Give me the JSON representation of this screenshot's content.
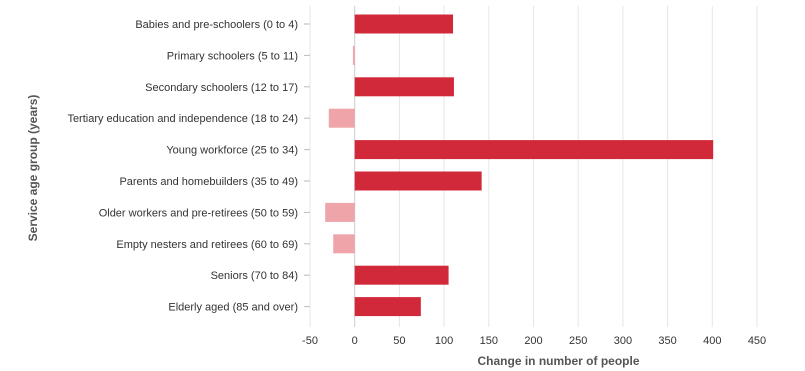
{
  "chart_data": {
    "type": "bar",
    "orientation": "horizontal",
    "title": "",
    "xlabel": "Change in number of people",
    "ylabel": "Service age group (years)",
    "xlim": [
      -50,
      450
    ],
    "xticks": [
      -50,
      0,
      50,
      100,
      150,
      200,
      250,
      300,
      350,
      400,
      450
    ],
    "grid": true,
    "categories": [
      "Babies and pre-schoolers (0 to 4)",
      "Primary schoolers (5 to 11)",
      "Secondary schoolers (12 to 17)",
      "Tertiary education and independence (18 to 24)",
      "Young workforce (25 to 34)",
      "Parents and homebuilders (35 to 49)",
      "Older workers and pre-retirees (50 to 59)",
      "Empty nesters and retirees (60 to 69)",
      "Seniors (70 to 84)",
      "Elderly aged (85 and over)"
    ],
    "values": [
      110,
      -2,
      111,
      -29,
      401,
      142,
      -33,
      -24,
      105,
      74
    ],
    "colors": {
      "positive": "#d1293a",
      "negative": "#eea4a9"
    }
  }
}
